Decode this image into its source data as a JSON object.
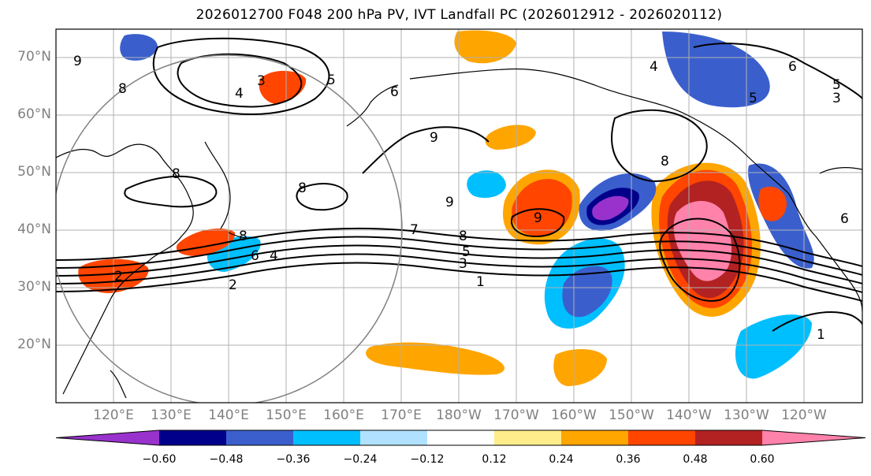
{
  "title": "2026012700 F048 200 hPa PV, IVT Landfall PC (2026012912 - 2026020112)",
  "lat_labels": [
    "70°N",
    "60°N",
    "50°N",
    "40°N",
    "30°N",
    "20°N"
  ],
  "lon_labels": [
    "120°E",
    "130°E",
    "140°E",
    "150°E",
    "160°E",
    "170°E",
    "180°W",
    "170°W",
    "160°W",
    "150°W",
    "140°W",
    "130°W",
    "120°W"
  ],
  "map": {
    "lon_range": [
      110,
      250
    ],
    "lat_range": [
      10,
      75
    ],
    "pv_contour_labels": [
      "9",
      "8",
      "4",
      "3",
      "8",
      "6",
      "8",
      "8",
      "9",
      "4",
      "6",
      "5",
      "3",
      "8",
      "7",
      "8",
      "5",
      "3",
      "2",
      "1",
      "6",
      "4",
      "2",
      "9",
      "1",
      "6",
      "5",
      "9",
      "5"
    ]
  },
  "colorbar": {
    "colors": [
      "#9932CC",
      "#00008B",
      "#3A5FCD",
      "#00BFFF",
      "#B0E2FF",
      "#FFFFFF",
      "#FFEC8B",
      "#FFA500",
      "#FF4500",
      "#B22222",
      "#FF82AB"
    ],
    "tick_labels": [
      "−0.60",
      "−0.48",
      "−0.36",
      "−0.24",
      "−0.12",
      "0.12",
      "0.24",
      "0.36",
      "0.48",
      "0.60"
    ]
  }
}
